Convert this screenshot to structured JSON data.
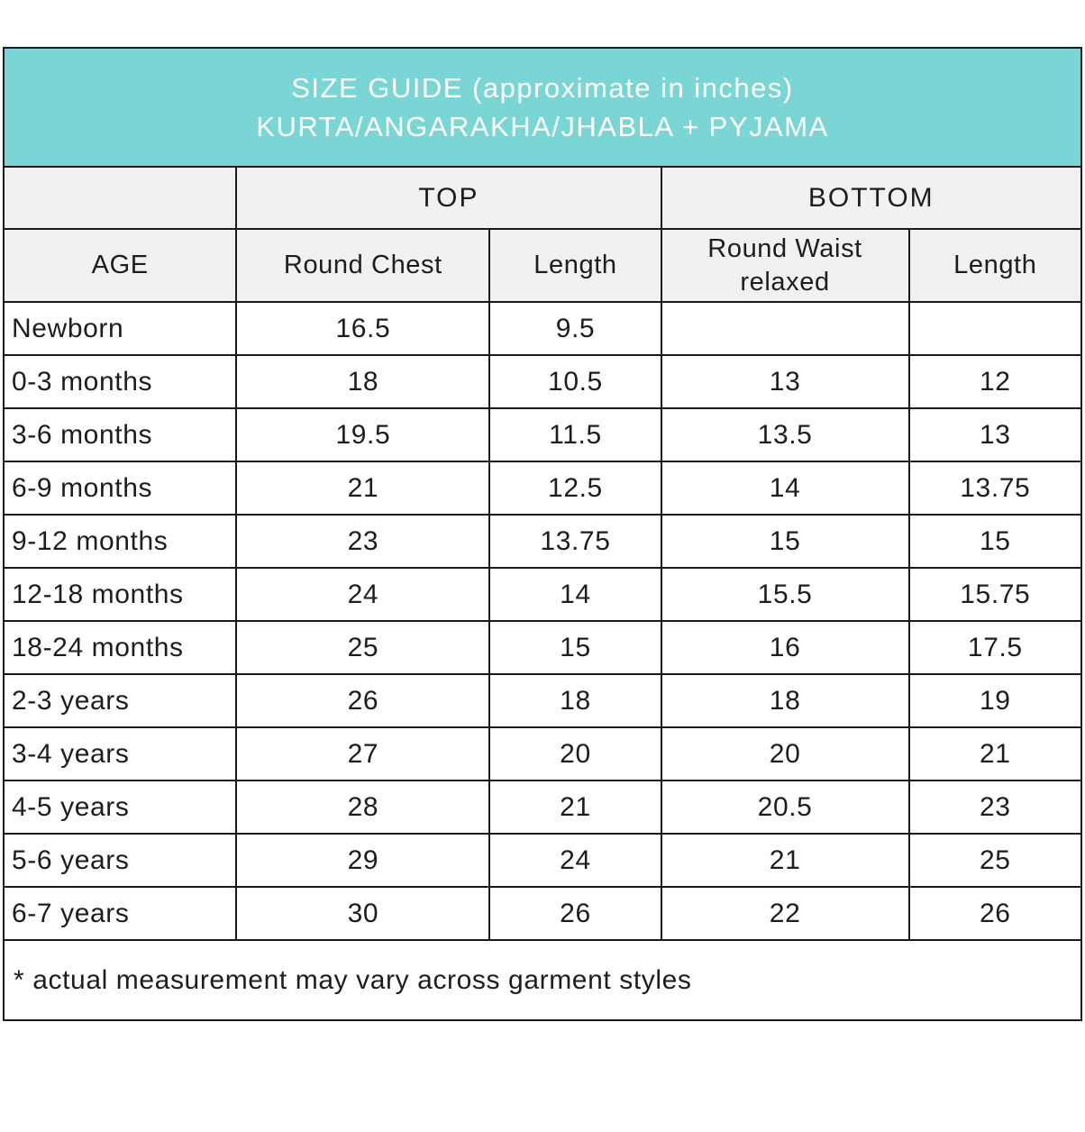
{
  "banner": {
    "line1": "SIZE GUIDE (approximate in inches)",
    "line2": "KURTA/ANGARAKHA/JHABLA + PYJAMA",
    "accent_color": "#7ad6d4",
    "text_color": "#ffffff"
  },
  "table": {
    "group_headers": {
      "top": "TOP",
      "bottom": "BOTTOM"
    },
    "column_headers": {
      "age": "AGE",
      "round_chest": "Round Chest",
      "top_length": "Length",
      "round_waist": "Round Waist relaxed",
      "bottom_length": "Length"
    },
    "rows": [
      {
        "age": "Newborn",
        "round_chest": "16.5",
        "top_length": "9.5",
        "round_waist": "",
        "bottom_length": ""
      },
      {
        "age": "0-3 months",
        "round_chest": "18",
        "top_length": "10.5",
        "round_waist": "13",
        "bottom_length": "12"
      },
      {
        "age": "3-6 months",
        "round_chest": "19.5",
        "top_length": "11.5",
        "round_waist": "13.5",
        "bottom_length": "13"
      },
      {
        "age": "6-9 months",
        "round_chest": "21",
        "top_length": "12.5",
        "round_waist": "14",
        "bottom_length": "13.75"
      },
      {
        "age": "9-12 months",
        "round_chest": "23",
        "top_length": "13.75",
        "round_waist": "15",
        "bottom_length": "15"
      },
      {
        "age": "12-18 months",
        "round_chest": "24",
        "top_length": "14",
        "round_waist": "15.5",
        "bottom_length": "15.75"
      },
      {
        "age": "18-24 months",
        "round_chest": "25",
        "top_length": "15",
        "round_waist": "16",
        "bottom_length": "17.5"
      },
      {
        "age": "2-3 years",
        "round_chest": "26",
        "top_length": "18",
        "round_waist": "18",
        "bottom_length": "19"
      },
      {
        "age": "3-4 years",
        "round_chest": "27",
        "top_length": "20",
        "round_waist": "20",
        "bottom_length": "21"
      },
      {
        "age": "4-5 years",
        "round_chest": "28",
        "top_length": "21",
        "round_waist": "20.5",
        "bottom_length": "23"
      },
      {
        "age": "5-6 years",
        "round_chest": "29",
        "top_length": "24",
        "round_waist": "21",
        "bottom_length": "25"
      },
      {
        "age": "6-7 years",
        "round_chest": "30",
        "top_length": "26",
        "round_waist": "22",
        "bottom_length": "26"
      }
    ]
  },
  "footnote": "* actual measurement may vary across garment styles",
  "chart_data": {
    "type": "table",
    "title": "SIZE GUIDE (approximate in inches) KURTA/ANGARAKHA/JHABLA + PYJAMA",
    "column_groups": [
      "",
      "TOP",
      "TOP",
      "BOTTOM",
      "BOTTOM"
    ],
    "columns": [
      "AGE",
      "Round Chest",
      "Length",
      "Round Waist relaxed",
      "Length"
    ],
    "rows": [
      [
        "Newborn",
        16.5,
        9.5,
        null,
        null
      ],
      [
        "0-3 months",
        18,
        10.5,
        13,
        12
      ],
      [
        "3-6 months",
        19.5,
        11.5,
        13.5,
        13
      ],
      [
        "6-9 months",
        21,
        12.5,
        14,
        13.75
      ],
      [
        "9-12 months",
        23,
        13.75,
        15,
        15
      ],
      [
        "12-18 months",
        24,
        14,
        15.5,
        15.75
      ],
      [
        "18-24 months",
        25,
        15,
        16,
        17.5
      ],
      [
        "2-3 years",
        26,
        18,
        18,
        19
      ],
      [
        "3-4 years",
        27,
        20,
        20,
        21
      ],
      [
        "4-5 years",
        28,
        21,
        20.5,
        23
      ],
      [
        "5-6 years",
        29,
        24,
        21,
        25
      ],
      [
        "6-7 years",
        30,
        26,
        22,
        26
      ]
    ],
    "footnote": "* actual measurement may vary across garment styles"
  }
}
